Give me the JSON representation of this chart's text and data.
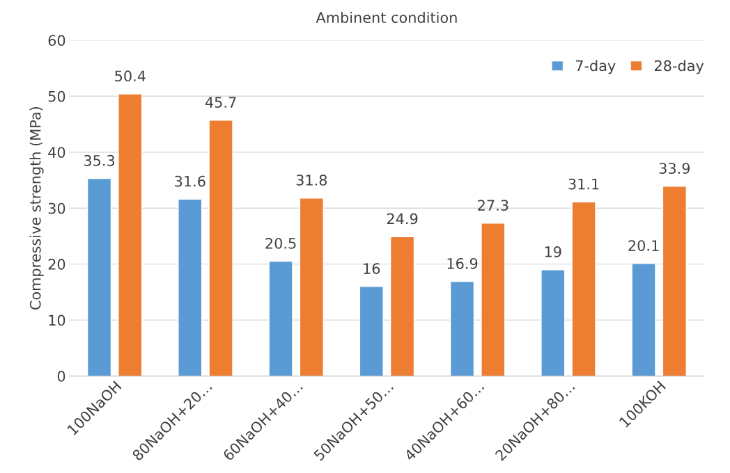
{
  "chart_data": {
    "type": "bar",
    "title": "Ambinent condition",
    "ylabel": "Compressive strength (MPa)",
    "categories": [
      "100NaOH",
      "80NaOH+20…",
      "60NaOH+40…",
      "50NaOH+50…",
      "40NaOH+60…",
      "20NaOH+80…",
      "100KOH"
    ],
    "series": [
      {
        "name": "7-day",
        "color": "#5b9bd5",
        "values": [
          35.3,
          31.6,
          20.5,
          16,
          16.9,
          19,
          20.1
        ]
      },
      {
        "name": "28-day",
        "color": "#ed7d31",
        "values": [
          50.4,
          45.7,
          31.8,
          24.9,
          27.3,
          31.1,
          33.9
        ]
      }
    ],
    "ylim": [
      0,
      60
    ],
    "yticks": [
      0,
      10,
      20,
      30,
      40,
      50,
      60
    ],
    "grid": "y",
    "legend": "top right",
    "data_labels": true
  }
}
